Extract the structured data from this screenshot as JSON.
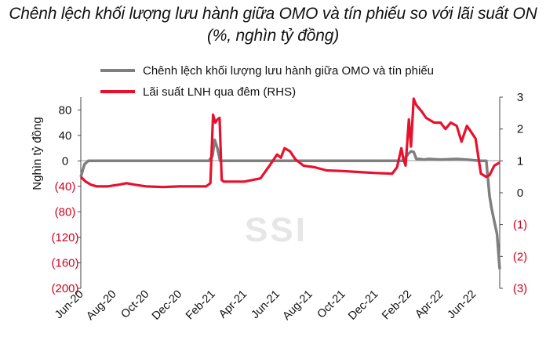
{
  "title": "Chênh lệch khối lượng lưu hành giữa OMO và tín phiếu so với lãi suất ON",
  "subtitle": "(%, nghìn tỷ đồng)",
  "watermark": "SSI",
  "colors": {
    "series_gray": "#7f7f7f",
    "series_red": "#e8112d",
    "negative_tick": "#d1001f",
    "axis": "#444444"
  },
  "chart_data": {
    "type": "line",
    "xlabel": "",
    "ylabel": "Nghìn tỷ đồng",
    "x_ticks": [
      "Jun-20",
      "Aug-20",
      "Oct-20",
      "Dec-20",
      "Feb-21",
      "Apr-21",
      "Jun-21",
      "Aug-21",
      "Oct-21",
      "Dec-21",
      "Feb-22",
      "Apr-22",
      "Jun-22"
    ],
    "y_left_ticks": [
      "80",
      "40",
      "0",
      "(40)",
      "(80)",
      "(120)",
      "(160)",
      "(200)"
    ],
    "y_left_range": [
      -200,
      100
    ],
    "y_right_ticks": [
      "3",
      "2",
      "1",
      "0",
      "(1)",
      "(2)",
      "(3)"
    ],
    "y_right_range": [
      -3,
      3
    ],
    "legend_position": "top",
    "series": [
      {
        "name": "Chênh lệch khối lượng lưu hành giữa OMO và tín phiếu",
        "axis": "left",
        "color": "#7f7f7f",
        "x": [
          "2020-06-01",
          "2020-06-08",
          "2020-06-15",
          "2020-06-25",
          "2021-01-25",
          "2021-02-01",
          "2021-02-05",
          "2021-02-10",
          "2021-02-15",
          "2022-01-20",
          "2022-01-25",
          "2022-02-01",
          "2022-02-05",
          "2022-02-10",
          "2022-02-15",
          "2022-02-20",
          "2022-03-01",
          "2022-03-10",
          "2022-04-01",
          "2022-05-01",
          "2022-05-20",
          "2022-06-01",
          "2022-06-15",
          "2022-06-25",
          "2022-07-01",
          "2022-07-05",
          "2022-07-10",
          "2022-07-15",
          "2022-07-20"
        ],
        "values": [
          -25,
          -5,
          0,
          0,
          0,
          8,
          33,
          20,
          0,
          0,
          5,
          12,
          15,
          14,
          3,
          3,
          2,
          3,
          2,
          3,
          2,
          1,
          0,
          0,
          -55,
          -75,
          -95,
          -115,
          -170
        ]
      },
      {
        "name": "Lãi suất LNH qua đêm (RHS)",
        "axis": "right",
        "color": "#e8112d",
        "x": [
          "2020-06-01",
          "2020-06-10",
          "2020-06-20",
          "2020-07-01",
          "2020-07-20",
          "2020-08-10",
          "2020-08-25",
          "2020-09-10",
          "2020-10-01",
          "2020-11-01",
          "2020-12-01",
          "2021-01-01",
          "2021-01-20",
          "2021-01-28",
          "2021-02-02",
          "2021-02-06",
          "2021-02-10",
          "2021-02-14",
          "2021-02-18",
          "2021-02-22",
          "2021-03-01",
          "2021-04-01",
          "2021-05-01",
          "2021-05-20",
          "2021-06-01",
          "2021-06-08",
          "2021-06-15",
          "2021-06-25",
          "2021-07-05",
          "2021-07-20",
          "2021-08-10",
          "2021-09-01",
          "2021-10-01",
          "2021-11-01",
          "2021-12-01",
          "2022-01-01",
          "2022-01-10",
          "2022-01-18",
          "2022-01-22",
          "2022-01-26",
          "2022-02-01",
          "2022-02-05",
          "2022-02-10",
          "2022-02-15",
          "2022-02-25",
          "2022-03-05",
          "2022-03-20",
          "2022-04-01",
          "2022-04-10",
          "2022-04-20",
          "2022-05-01",
          "2022-05-10",
          "2022-05-20",
          "2022-05-28",
          "2022-06-05",
          "2022-06-15",
          "2022-06-25",
          "2022-07-01",
          "2022-07-10",
          "2022-07-20"
        ],
        "values": [
          0.5,
          0.35,
          0.25,
          0.2,
          0.2,
          0.25,
          0.3,
          0.25,
          0.2,
          0.18,
          0.2,
          0.2,
          0.2,
          0.3,
          2.45,
          2.2,
          2.3,
          2.35,
          0.4,
          0.35,
          0.35,
          0.35,
          0.45,
          0.9,
          1.2,
          1.1,
          1.4,
          1.3,
          1.05,
          0.85,
          0.8,
          0.7,
          0.68,
          0.65,
          0.62,
          0.6,
          0.8,
          1.4,
          1.05,
          0.85,
          2.3,
          1.45,
          2.95,
          2.75,
          2.55,
          2.35,
          2.2,
          2.2,
          2.0,
          2.2,
          2.1,
          1.6,
          2.1,
          1.9,
          1.7,
          0.6,
          0.5,
          0.55,
          0.85,
          0.95
        ]
      }
    ]
  }
}
